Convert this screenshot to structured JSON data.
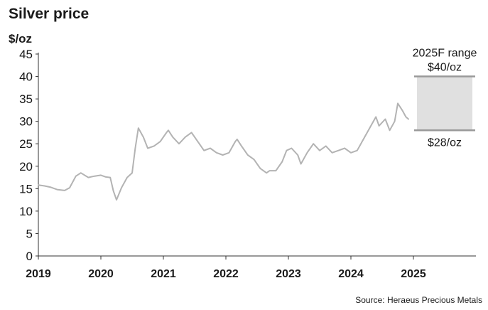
{
  "chart_data": {
    "type": "line",
    "title": "Silver price",
    "ylabel": "$/oz",
    "ylim": [
      0,
      45
    ],
    "yticks": [
      0,
      5,
      10,
      15,
      20,
      25,
      30,
      35,
      40,
      45
    ],
    "xlim": [
      2019,
      2026
    ],
    "xticks": [
      "2019",
      "2020",
      "2021",
      "2022",
      "2023",
      "2024",
      "2025"
    ],
    "series": [
      {
        "color": "#b3b3b3",
        "x": [
          2019.0,
          2019.1,
          2019.2,
          2019.3,
          2019.42,
          2019.5,
          2019.6,
          2019.68,
          2019.8,
          2019.9,
          2020.0,
          2020.08,
          2020.15,
          2020.2,
          2020.25,
          2020.33,
          2020.42,
          2020.5,
          2020.55,
          2020.6,
          2020.68,
          2020.75,
          2020.85,
          2020.95,
          2021.05,
          2021.08,
          2021.15,
          2021.25,
          2021.35,
          2021.45,
          2021.55,
          2021.65,
          2021.75,
          2021.85,
          2021.95,
          2022.05,
          2022.15,
          2022.18,
          2022.25,
          2022.35,
          2022.45,
          2022.55,
          2022.65,
          2022.7,
          2022.8,
          2022.9,
          2022.97,
          2023.05,
          2023.15,
          2023.2,
          2023.3,
          2023.4,
          2023.5,
          2023.6,
          2023.7,
          2023.8,
          2023.9,
          2024.0,
          2024.1,
          2024.2,
          2024.3,
          2024.4,
          2024.45,
          2024.55,
          2024.62,
          2024.7,
          2024.75,
          2024.82,
          2024.88,
          2024.92
        ],
        "values": [
          15.8,
          15.6,
          15.3,
          14.8,
          14.6,
          15.2,
          17.8,
          18.5,
          17.5,
          17.8,
          18.0,
          17.6,
          17.5,
          14.5,
          12.5,
          15.2,
          17.5,
          18.5,
          24.0,
          28.5,
          26.5,
          24.0,
          24.5,
          25.5,
          27.5,
          28.0,
          26.5,
          25.0,
          26.5,
          27.5,
          25.5,
          23.5,
          24.0,
          23.0,
          22.5,
          23.0,
          25.5,
          26.0,
          24.5,
          22.5,
          21.5,
          19.5,
          18.5,
          19.0,
          19.0,
          21.0,
          23.5,
          24.0,
          22.5,
          20.5,
          23.0,
          25.0,
          23.5,
          24.5,
          23.0,
          23.5,
          24.0,
          23.0,
          23.5,
          26.0,
          28.5,
          31.0,
          29.0,
          30.5,
          28.0,
          30.0,
          34.0,
          32.5,
          31.0,
          30.5
        ]
      }
    ],
    "forecast": {
      "label": "2025F range",
      "high_label": "$40/oz",
      "low_label": "$28/oz",
      "low": 28,
      "high": 40,
      "x_start": 2025.0,
      "x_end": 2026.0,
      "fill_color": "#e0e0e0",
      "edge_color": "#999999"
    },
    "source": "Source: Heraeus Precious Metals"
  }
}
